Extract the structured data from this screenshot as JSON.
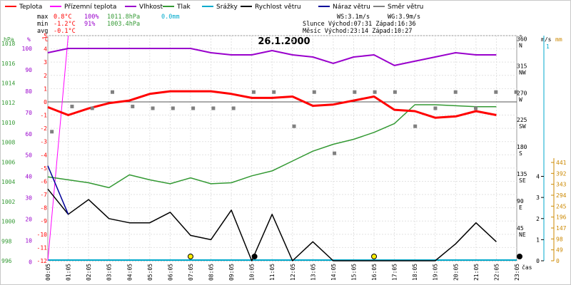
{
  "chart_data": {
    "type": "line",
    "title": "26.1.2000",
    "legend": [
      {
        "label": "Teplota",
        "color": "#ff0000"
      },
      {
        "label": "Přízemní teplota",
        "color": "#ff00ff"
      },
      {
        "label": "Vlhkost",
        "color": "#9900cc"
      },
      {
        "label": "Tlak",
        "color": "#339933"
      },
      {
        "label": "Srážky",
        "color": "#00aacc"
      },
      {
        "label": "Rychlost větru",
        "color": "#000000"
      },
      {
        "label": "Náraz větru",
        "color": "#000099"
      },
      {
        "label": "Směr větru",
        "color": "#808080"
      }
    ],
    "stats": {
      "max_label": "max",
      "max_temp": "0.8°C",
      "max_hum": "100%",
      "max_press": "1011.8hPa",
      "max_rain": "0.0mm",
      "min_label": "min",
      "min_temp": "-1.2°C",
      "min_hum": "91%",
      "min_press": "1003.4hPa",
      "avg_label": "avg",
      "avg_temp": "-0.1°C",
      "ws": "WS:3.1m/s",
      "wg": "WG:3.9m/s",
      "sun": "Slunce Východ:07:31  Západ:16:36",
      "moon": "Měsíc  Východ:23:14  Západ:10:27"
    },
    "axis_units": {
      "hpa": "hPa",
      "pct": "%",
      "degc": "°C",
      "deg": "°",
      "ms": "m/s",
      "mm": "mm",
      "cas": "čas"
    },
    "x_ticks": [
      "00:05",
      "01:05",
      "02:05",
      "03:05",
      "04:05",
      "05:05",
      "06:05",
      "07:05",
      "08:05",
      "09:05",
      "10:05",
      "11:05",
      "12:05",
      "13:05",
      "14:05",
      "15:05",
      "16:05",
      "17:05",
      "18:05",
      "19:05",
      "20:05",
      "21:05",
      "22:05",
      "23:05"
    ],
    "temp_ticks": [
      "5",
      "4",
      "3",
      "2",
      "1",
      "0",
      "-1",
      "-2",
      "-3",
      "-4",
      "-5",
      "-6",
      "-7",
      "-8",
      "-9",
      "-10",
      "-11",
      "-12"
    ],
    "pct_ticks": [
      "100",
      "90",
      "80",
      "70",
      "60",
      "50",
      "40",
      "30",
      "20",
      "10",
      "0"
    ],
    "hpa_ticks": [
      "1018",
      "1016",
      "1014",
      "1012",
      "1010",
      "1008",
      "1006",
      "1004",
      "1002",
      "1000",
      "998",
      "996"
    ],
    "dir_ticks": [
      {
        "deg": 360,
        "deg_label": "360",
        "cardinal": "N"
      },
      {
        "deg": 315,
        "deg_label": "315",
        "cardinal": "NW"
      },
      {
        "deg": 270,
        "deg_label": "270",
        "cardinal": "W"
      },
      {
        "deg": 225,
        "deg_label": "225",
        "cardinal": "SW"
      },
      {
        "deg": 180,
        "deg_label": "180",
        "cardinal": "S"
      },
      {
        "deg": 135,
        "deg_label": "135",
        "cardinal": "SE"
      },
      {
        "deg": 90,
        "deg_label": "90",
        "cardinal": "E"
      },
      {
        "deg": 45,
        "deg_label": "45",
        "cardinal": "NE"
      }
    ],
    "ms_ticks": [
      "4",
      "3",
      "2",
      "1",
      "0"
    ],
    "mm_ticks": [
      "441",
      "392",
      "343",
      "294",
      "245",
      "196",
      "147",
      "98",
      "49",
      "0"
    ],
    "mm_top": "1",
    "series": {
      "temperature_C": [
        -0.4,
        -1.0,
        -0.5,
        -0.1,
        0.1,
        0.6,
        0.8,
        0.8,
        0.8,
        0.6,
        0.3,
        0.3,
        0.4,
        -0.3,
        -0.2,
        0.1,
        0.4,
        -0.6,
        -0.7,
        -1.2,
        -1.1,
        -0.7,
        -1.0
      ],
      "ground_temperature_C": [
        -12.0,
        5.0
      ],
      "humidity_pct": [
        98,
        100,
        100,
        100,
        100,
        100,
        100,
        100,
        98,
        97,
        97,
        99,
        97,
        96,
        93,
        96,
        97,
        92,
        94,
        96,
        98,
        97,
        97
      ],
      "pressure_hPa": [
        1004.5,
        1004.2,
        1003.9,
        1003.4,
        1004.7,
        1004.2,
        1003.8,
        1004.4,
        1003.8,
        1003.9,
        1004.6,
        1005.1,
        1006.1,
        1007.1,
        1007.8,
        1008.3,
        1009.0,
        1009.9,
        1011.8,
        1011.8,
        1011.7,
        1011.6,
        1011.6
      ],
      "wind_speed_ms": [
        3.4,
        2.2,
        2.9,
        2.0,
        1.8,
        1.8,
        2.3,
        1.2,
        1.0,
        2.4,
        0.0,
        2.2,
        0.0,
        0.9,
        0.0,
        0.0,
        0.0,
        0.0,
        0.0,
        0.0,
        0.8,
        1.8,
        0.9
      ],
      "wind_gust_ms": [
        4.5,
        2.2
      ],
      "wind_direction_deg": [
        210,
        252,
        249,
        276,
        252,
        249,
        249,
        249,
        249,
        249,
        276,
        276,
        219,
        276,
        174,
        276,
        276,
        276,
        219,
        249,
        276,
        249,
        276,
        276
      ],
      "rain_mm": [
        0
      ],
      "sun_markers_h": [
        7.0,
        16.0
      ],
      "moon_markers_h": [
        10.0,
        23.0
      ]
    }
  }
}
